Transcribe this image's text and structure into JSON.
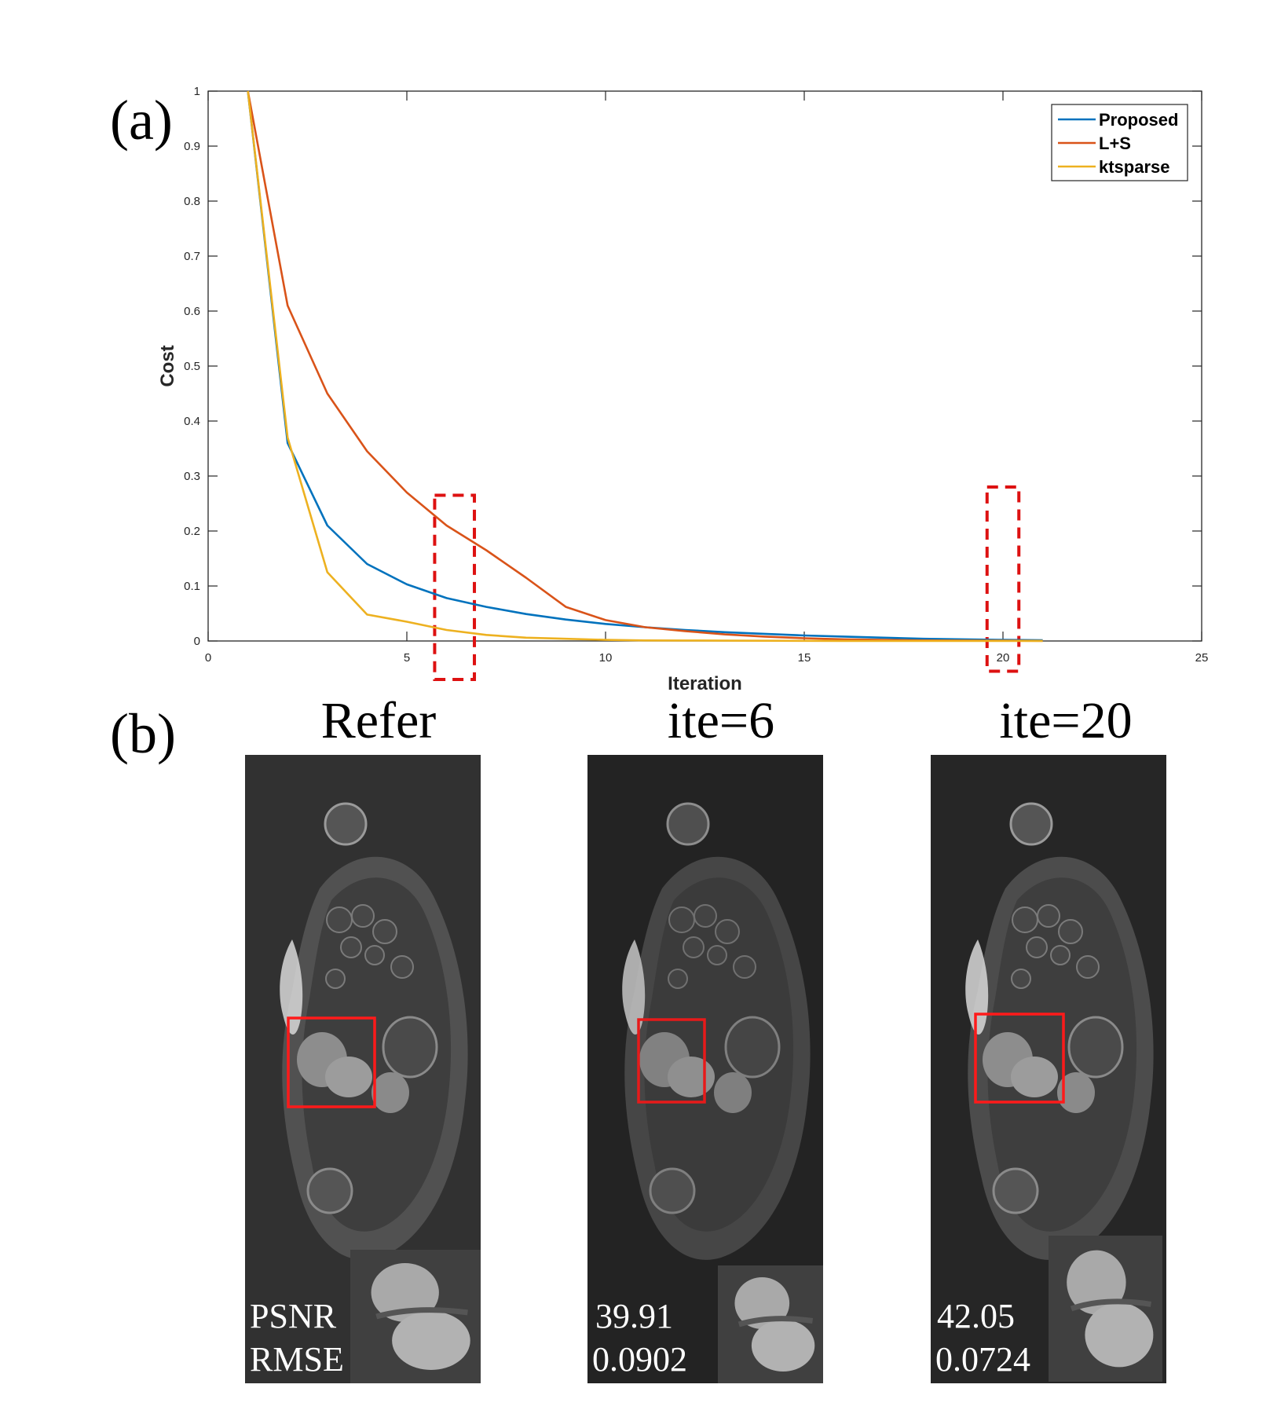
{
  "panels": {
    "a_label": "(a)",
    "b_label": "(b)"
  },
  "chart_data": {
    "type": "line",
    "xlabel": "Iteration",
    "ylabel": "Cost",
    "xlim": [
      0,
      25
    ],
    "ylim": [
      0,
      1
    ],
    "xticks": [
      0,
      5,
      10,
      15,
      20,
      25
    ],
    "yticks": [
      0,
      0.1,
      0.2,
      0.3,
      0.4,
      0.5,
      0.6,
      0.7,
      0.8,
      0.9,
      1
    ],
    "grid": false,
    "legend_position": "top-right",
    "series": [
      {
        "name": "Proposed",
        "color": "#0072BD",
        "x": [
          1,
          2,
          3,
          4,
          5,
          6,
          7,
          8,
          9,
          10,
          11,
          12,
          13,
          14,
          15,
          16,
          17,
          18,
          19,
          20,
          21
        ],
        "y": [
          1,
          0.36,
          0.21,
          0.14,
          0.103,
          0.078,
          0.062,
          0.049,
          0.039,
          0.031,
          0.025,
          0.02,
          0.016,
          0.013,
          0.01,
          0.008,
          0.006,
          0.004,
          0.003,
          0.002,
          0.0015
        ]
      },
      {
        "name": "L+S",
        "color": "#D95319",
        "x": [
          1,
          2,
          3,
          4,
          5,
          6,
          7,
          8,
          9,
          10,
          11,
          12,
          13,
          14,
          15,
          16,
          17,
          18,
          19,
          20,
          21
        ],
        "y": [
          1,
          0.61,
          0.45,
          0.345,
          0.27,
          0.21,
          0.165,
          0.115,
          0.062,
          0.038,
          0.025,
          0.018,
          0.012,
          0.008,
          0.005,
          0.003,
          0.002,
          0.001,
          0.0008,
          0.0005,
          0.0003
        ]
      },
      {
        "name": "ktsparse",
        "color": "#EDB120",
        "x": [
          1,
          2,
          3,
          4,
          5,
          6,
          7,
          8,
          9,
          10,
          11,
          12,
          13,
          14,
          15,
          16,
          17,
          18,
          19,
          20,
          21
        ],
        "y": [
          1,
          0.37,
          0.125,
          0.048,
          0.035,
          0.02,
          0.011,
          0.006,
          0.004,
          0.002,
          0.001,
          0.0008,
          0.0006,
          0.0004,
          0.0003,
          0.0002,
          0.0001,
          0.0001,
          0.0001,
          0.0001,
          0.0001
        ]
      }
    ],
    "highlight_boxes": [
      {
        "x_range": [
          5.7,
          6.7
        ],
        "y_range": [
          -0.07,
          0.265
        ],
        "color": "#DD1111"
      },
      {
        "x_range": [
          19.6,
          20.4
        ],
        "y_range": [
          -0.055,
          0.28
        ],
        "color": "#DD1111"
      }
    ]
  },
  "images": [
    {
      "title": "Refer",
      "metric_top": "PSNR",
      "metric_bottom": "RMSE"
    },
    {
      "title": "ite=6",
      "metric_top": "39.91",
      "metric_bottom": "0.0902"
    },
    {
      "title": "ite=20",
      "metric_top": "42.05",
      "metric_bottom": "0.0724"
    }
  ],
  "colors": {
    "roi_box": "#FF1A1A",
    "mri_background": "#2f2f2f",
    "mri_background_dark": "#232323"
  }
}
